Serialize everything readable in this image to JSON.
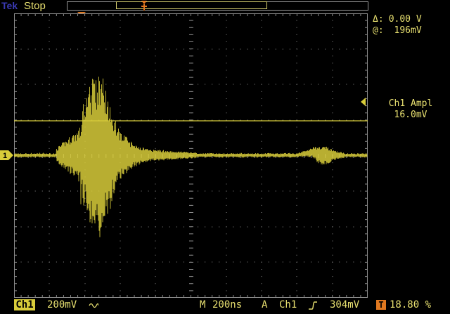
{
  "header": {
    "brand": "Tek",
    "run_state": "Stop"
  },
  "cursor_readout": {
    "delta_label": "Δ:",
    "delta_value": "0.00 V",
    "at_label": "@:",
    "at_value": "196mV"
  },
  "measurement": {
    "name": "Ch1 Ampl",
    "value": "16.0mV"
  },
  "bottom_bar": {
    "channel": "Ch1",
    "volts_div": "200mV",
    "coupling_icon": "ac-coupling-icon",
    "timebase_label": "M",
    "timebase_value": "200ns",
    "trigger_mode": "A",
    "trigger_source": "Ch1",
    "trigger_slope_icon": "rising-edge-icon",
    "trigger_level": "304mV",
    "trigger_position_icon": "T",
    "trigger_position": "18.80 %"
  },
  "markers": {
    "ground_marker_label": "1",
    "trigger_marker_label": "T"
  },
  "colors": {
    "trace": "#d8cc3a",
    "grid": "#8a8a8a",
    "brand": "#3a3ab4",
    "trigger": "#e07820"
  }
}
